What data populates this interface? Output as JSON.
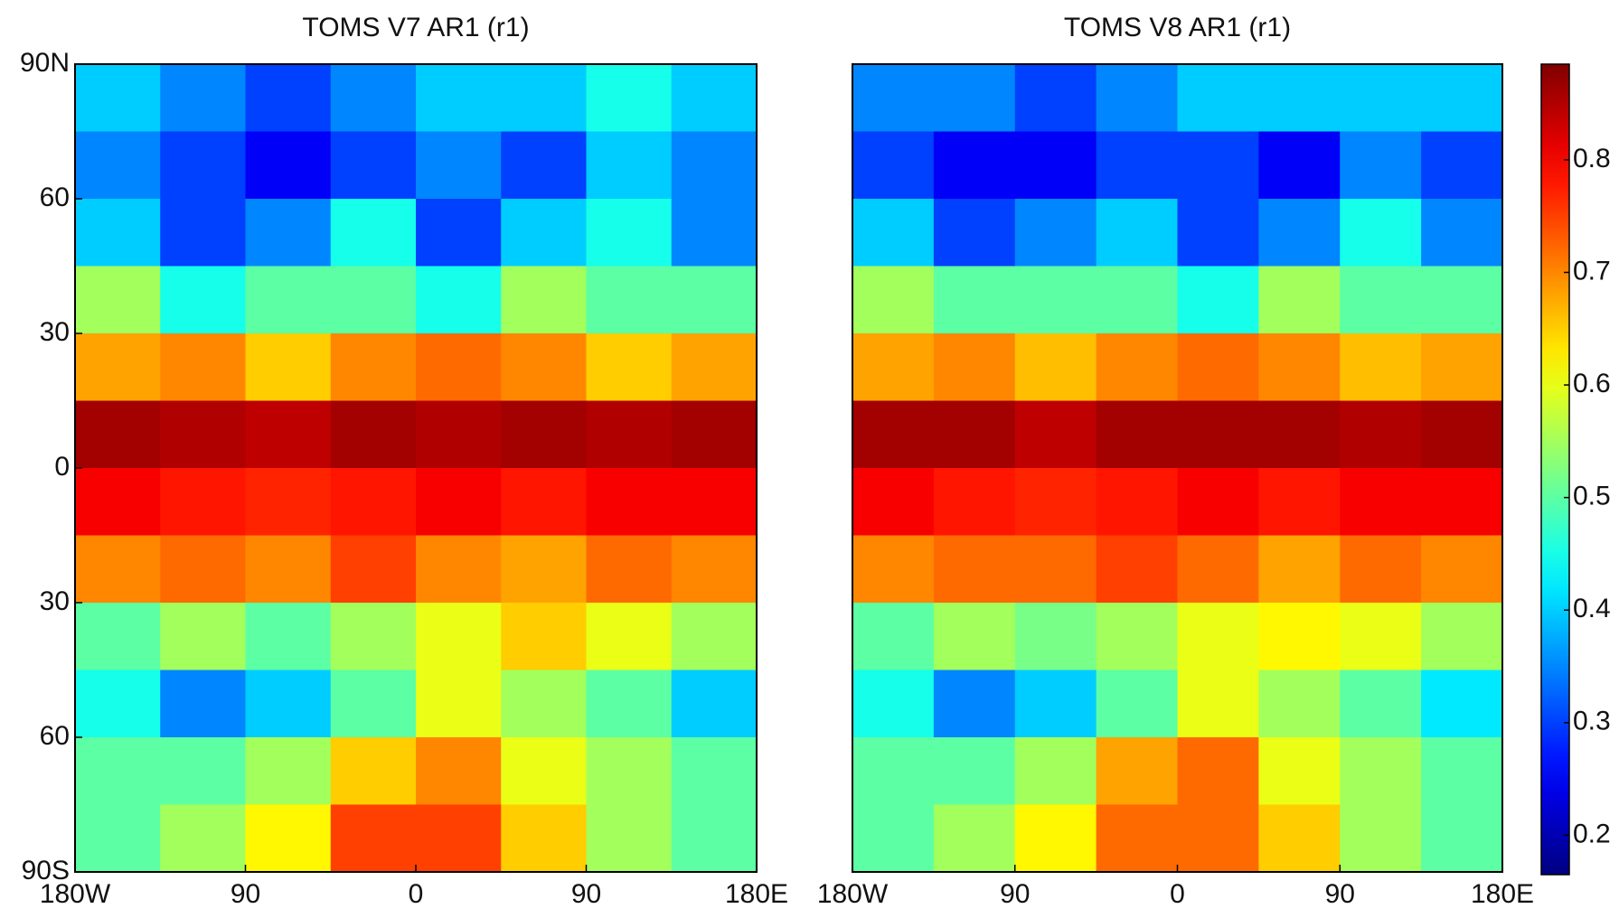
{
  "chart_data": [
    {
      "type": "heatmap",
      "title": "TOMS V7 AR1 (r1)",
      "colormap": "jet",
      "xlim": [
        -180,
        180
      ],
      "ylim": [
        -90,
        90
      ],
      "xticks": [
        {
          "value": -180,
          "label": "180W"
        },
        {
          "value": -90,
          "label": "90"
        },
        0,
        {
          "value": 90,
          "label": "90"
        },
        {
          "value": 180,
          "label": "180E"
        }
      ],
      "yticks": [
        {
          "value": 90,
          "label": "90N"
        },
        {
          "value": 60,
          "label": "60"
        },
        {
          "value": 30,
          "label": "30"
        },
        0,
        {
          "value": -30,
          "label": "30"
        },
        {
          "value": -60,
          "label": "60"
        },
        {
          "value": -90,
          "label": "90S"
        }
      ],
      "x_bins": [
        -180,
        -135,
        -90,
        -45,
        0,
        45,
        90,
        135,
        180
      ],
      "y_bins": [
        90,
        75,
        60,
        45,
        30,
        15,
        0,
        -15,
        -30,
        -45,
        -60,
        -75,
        -90
      ],
      "values": [
        [
          0.4,
          0.35,
          0.3,
          0.35,
          0.4,
          0.4,
          0.45,
          0.4
        ],
        [
          0.35,
          0.3,
          0.25,
          0.3,
          0.35,
          0.3,
          0.4,
          0.35
        ],
        [
          0.4,
          0.3,
          0.35,
          0.45,
          0.3,
          0.4,
          0.45,
          0.35
        ],
        [
          0.55,
          0.45,
          0.5,
          0.5,
          0.45,
          0.55,
          0.5,
          0.5
        ],
        [
          0.68,
          0.7,
          0.65,
          0.7,
          0.72,
          0.7,
          0.65,
          0.68
        ],
        [
          0.86,
          0.85,
          0.84,
          0.86,
          0.85,
          0.86,
          0.85,
          0.86
        ],
        [
          0.8,
          0.78,
          0.77,
          0.78,
          0.8,
          0.78,
          0.8,
          0.8
        ],
        [
          0.7,
          0.72,
          0.7,
          0.75,
          0.7,
          0.68,
          0.72,
          0.7
        ],
        [
          0.5,
          0.55,
          0.5,
          0.55,
          0.6,
          0.65,
          0.6,
          0.55
        ],
        [
          0.45,
          0.35,
          0.4,
          0.5,
          0.6,
          0.55,
          0.5,
          0.4
        ],
        [
          0.5,
          0.5,
          0.55,
          0.65,
          0.7,
          0.6,
          0.55,
          0.5
        ],
        [
          0.5,
          0.55,
          0.62,
          0.75,
          0.75,
          0.65,
          0.55,
          0.5
        ]
      ]
    },
    {
      "type": "heatmap",
      "title": "TOMS V8 AR1 (r1)",
      "colormap": "jet",
      "xlim": [
        -180,
        180
      ],
      "ylim": [
        -90,
        90
      ],
      "xticks": [
        {
          "value": -180,
          "label": "180W"
        },
        {
          "value": -90,
          "label": "90"
        },
        0,
        {
          "value": 90,
          "label": "90"
        },
        {
          "value": 180,
          "label": "180E"
        }
      ],
      "x_bins": [
        -180,
        -135,
        -90,
        -45,
        0,
        45,
        90,
        135,
        180
      ],
      "y_bins": [
        90,
        75,
        60,
        45,
        30,
        15,
        0,
        -15,
        -30,
        -45,
        -60,
        -75,
        -90
      ],
      "values": [
        [
          0.35,
          0.35,
          0.3,
          0.35,
          0.4,
          0.4,
          0.4,
          0.4
        ],
        [
          0.3,
          0.25,
          0.25,
          0.3,
          0.3,
          0.25,
          0.35,
          0.3
        ],
        [
          0.4,
          0.3,
          0.35,
          0.4,
          0.3,
          0.35,
          0.45,
          0.35
        ],
        [
          0.55,
          0.5,
          0.5,
          0.5,
          0.45,
          0.55,
          0.5,
          0.5
        ],
        [
          0.68,
          0.7,
          0.66,
          0.7,
          0.72,
          0.7,
          0.66,
          0.68
        ],
        [
          0.86,
          0.86,
          0.84,
          0.86,
          0.86,
          0.86,
          0.85,
          0.86
        ],
        [
          0.8,
          0.78,
          0.77,
          0.78,
          0.8,
          0.78,
          0.8,
          0.8
        ],
        [
          0.7,
          0.72,
          0.72,
          0.75,
          0.72,
          0.68,
          0.72,
          0.7
        ],
        [
          0.5,
          0.55,
          0.52,
          0.55,
          0.6,
          0.62,
          0.6,
          0.55
        ],
        [
          0.45,
          0.35,
          0.4,
          0.5,
          0.6,
          0.55,
          0.5,
          0.42
        ],
        [
          0.5,
          0.5,
          0.55,
          0.68,
          0.72,
          0.6,
          0.55,
          0.5
        ],
        [
          0.5,
          0.55,
          0.62,
          0.72,
          0.72,
          0.65,
          0.55,
          0.5
        ]
      ],
      "colorbar": {
        "lim": [
          0.165,
          0.885
        ],
        "ticks": [
          0.2,
          0.3,
          0.4,
          0.5,
          0.6,
          0.7,
          0.8
        ]
      }
    }
  ]
}
